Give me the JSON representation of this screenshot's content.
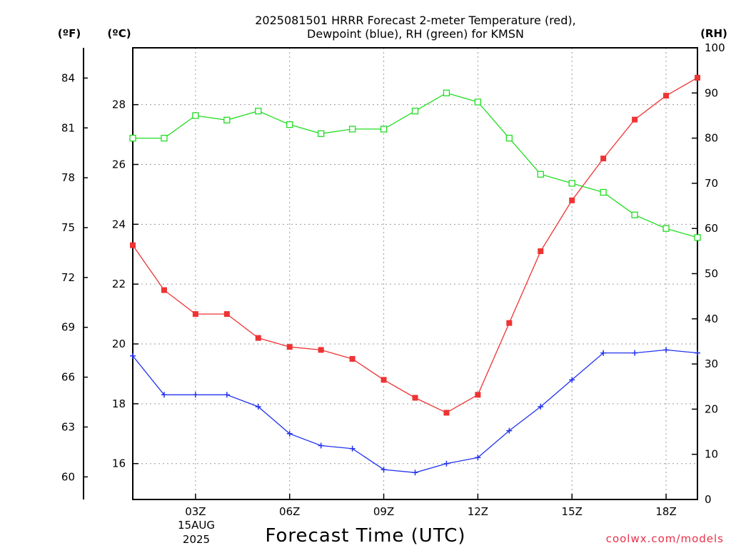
{
  "chart_data": {
    "type": "line",
    "title_line1": "2025081501 HRRR Forecast 2-meter Temperature (red),",
    "title_line2": "Dewpoint (blue), RH (green) for KMSN",
    "xlabel": "Forecast Time (UTC)",
    "x_hours": [
      1,
      2,
      3,
      4,
      5,
      6,
      7,
      8,
      9,
      10,
      11,
      12,
      13,
      14,
      15,
      16,
      17,
      18,
      19
    ],
    "x_ticks": [
      {
        "hour": 3,
        "label": "03Z"
      },
      {
        "hour": 6,
        "label": "06Z"
      },
      {
        "hour": 9,
        "label": "09Z"
      },
      {
        "hour": 12,
        "label": "12Z"
      },
      {
        "hour": 15,
        "label": "15Z"
      },
      {
        "hour": 18,
        "label": "18Z"
      }
    ],
    "date_label_day": "15AUG",
    "date_label_year": "2025",
    "x_range": [
      1,
      19
    ],
    "axis_f": {
      "unit": "(ºF)",
      "ticks": [
        60,
        63,
        66,
        69,
        72,
        75,
        78,
        81,
        84
      ]
    },
    "axis_c": {
      "unit": "(ºC)",
      "ticks": [
        16,
        18,
        20,
        22,
        24,
        26,
        28
      ],
      "range": [
        14.8,
        29.9
      ]
    },
    "axis_rh": {
      "unit": "(RH)",
      "ticks": [
        0,
        10,
        20,
        30,
        40,
        50,
        60,
        70,
        80,
        90,
        100
      ],
      "range": [
        0,
        100
      ]
    },
    "grid": true,
    "series": [
      {
        "name": "Temperature",
        "color": "#ee3333",
        "marker": "filled-square",
        "axis": "c",
        "values": [
          23.3,
          21.8,
          21.0,
          21.0,
          20.2,
          19.9,
          19.8,
          19.5,
          18.8,
          18.2,
          17.7,
          18.3,
          20.7,
          23.1,
          24.8,
          26.2,
          27.5,
          28.3,
          28.9
        ]
      },
      {
        "name": "Dewpoint",
        "color": "#2233ee",
        "marker": "plus",
        "axis": "c",
        "values": [
          19.6,
          18.3,
          18.3,
          18.3,
          17.9,
          17.0,
          16.6,
          16.5,
          15.8,
          15.7,
          16.0,
          16.2,
          17.1,
          17.9,
          18.8,
          19.7,
          19.7,
          19.8,
          19.7
        ]
      },
      {
        "name": "RH",
        "color": "#22dd22",
        "marker": "open-square",
        "axis": "rh",
        "values": [
          80,
          80,
          85,
          84,
          86,
          83,
          81,
          82,
          82,
          86,
          90,
          88,
          80,
          72,
          70,
          68,
          63,
          60,
          58
        ]
      }
    ],
    "credit": "coolwx.com/models"
  }
}
